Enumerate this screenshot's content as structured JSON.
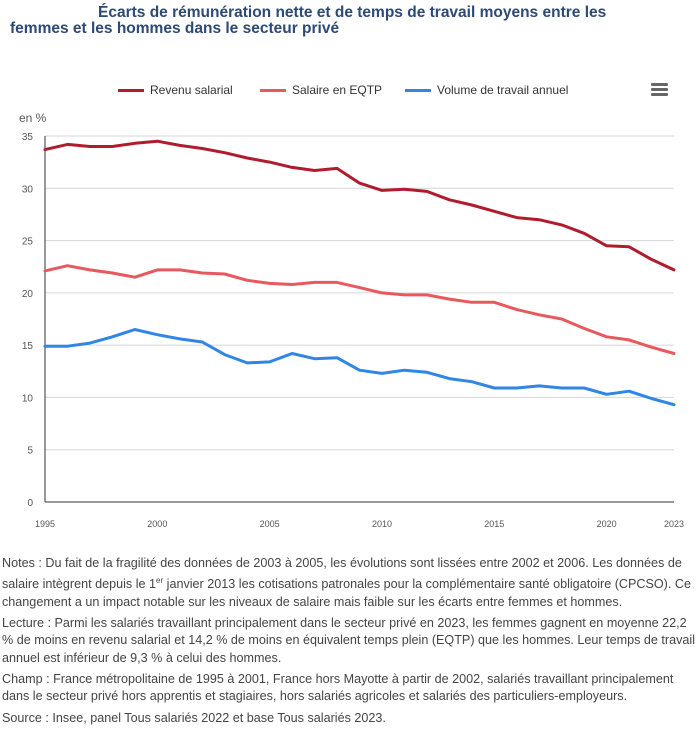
{
  "title": {
    "line1": "Écarts de rémunération nette et de temps de travail moyens entre les",
    "line2": "femmes et les hommes dans le secteur privé"
  },
  "menu": {
    "icon": "hamburger-menu-icon"
  },
  "chart_data": {
    "type": "line",
    "title": "Écarts de rémunération nette et de temps de travail moyens entre les femmes et les hommes dans le secteur privé",
    "xlabel": "",
    "ylabel": "en %",
    "ylim": [
      0,
      35
    ],
    "xlim": [
      1995,
      2023
    ],
    "yticks": [
      "0",
      "5",
      "10",
      "15",
      "20",
      "25",
      "30",
      "35"
    ],
    "xticks": [
      "1995",
      "2000",
      "2005",
      "2010",
      "2015",
      "2020",
      "2023"
    ],
    "grid": true,
    "legend_position": "top",
    "x": [
      1995,
      1996,
      1997,
      1998,
      1999,
      2000,
      2001,
      2002,
      2003,
      2004,
      2005,
      2006,
      2007,
      2008,
      2009,
      2010,
      2011,
      2012,
      2013,
      2014,
      2015,
      2016,
      2017,
      2018,
      2019,
      2020,
      2021,
      2022,
      2023
    ],
    "series": [
      {
        "name": "Revenu salarial",
        "color": "#b01c2e",
        "values": [
          33.7,
          34.2,
          34.0,
          34.0,
          34.3,
          34.5,
          34.1,
          33.8,
          33.4,
          32.9,
          32.5,
          32.0,
          31.7,
          31.9,
          30.5,
          29.8,
          29.9,
          29.7,
          28.9,
          28.4,
          27.8,
          27.2,
          27.0,
          26.5,
          25.7,
          24.5,
          24.4,
          23.2,
          22.2
        ]
      },
      {
        "name": "Salaire en EQTP",
        "color": "#e8595e",
        "values": [
          22.1,
          22.6,
          22.2,
          21.9,
          21.5,
          22.2,
          22.2,
          21.9,
          21.8,
          21.2,
          20.9,
          20.8,
          21.0,
          21.0,
          20.5,
          20.0,
          19.8,
          19.8,
          19.4,
          19.1,
          19.1,
          18.4,
          17.9,
          17.5,
          16.6,
          15.8,
          15.5,
          14.8,
          14.2
        ]
      },
      {
        "name": "Volume de travail annuel",
        "color": "#2f86e6",
        "values": [
          14.9,
          14.9,
          15.2,
          15.8,
          16.5,
          16.0,
          15.6,
          15.3,
          14.1,
          13.3,
          13.4,
          14.2,
          13.7,
          13.8,
          12.6,
          12.3,
          12.6,
          12.4,
          11.8,
          11.5,
          10.9,
          10.9,
          11.1,
          10.9,
          10.9,
          10.3,
          10.6,
          9.9,
          9.3
        ]
      }
    ]
  },
  "notes": {
    "notes_a": "Notes : Du fait de la fragilité des données de 2003 à 2005, les évolutions sont lissées entre 2002 et 2006. Les données de salaire intègrent depuis le 1",
    "notes_sup": "er",
    "notes_b": " janvier 2013 les cotisations patronales pour la complémentaire santé obligatoire (CPCSO). Ce changement a un impact notable sur les niveaux de salaire mais faible sur les écarts entre femmes et hommes.",
    "lecture": "Lecture : Parmi les salariés travaillant principalement dans le secteur privé en 2023, les femmes gagnent en moyenne 22,2 % de moins en revenu salarial et 14,2 % de moins en équivalent temps plein (EQTP) que les hommes. Leur temps de travail annuel est inférieur de 9,3 % à celui des hommes.",
    "champ": "Champ : France métropolitaine de 1995 à 2001, France hors Mayotte à partir de 2002, salariés travaillant principalement dans le secteur privé hors apprentis et stagiaires, hors salariés agricoles et salariés des particuliers-employeurs.",
    "source": "Source : Insee, panel Tous salariés 2022 et base Tous salariés 2023."
  }
}
